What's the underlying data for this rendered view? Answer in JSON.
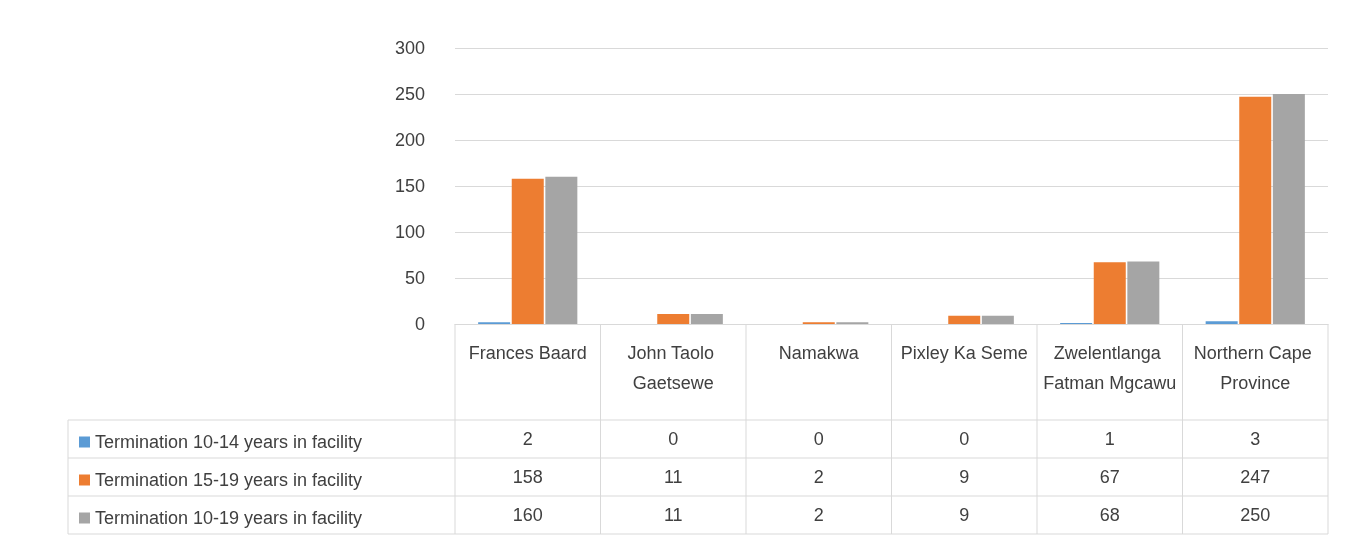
{
  "chart_data": {
    "type": "bar",
    "categories": [
      "Frances Baard",
      "John Taolo Gaetsewe",
      "Namakwa",
      "Pixley Ka Seme",
      "Zwelentlanga Fatman Mgcawu",
      "Northern Cape Province"
    ],
    "series": [
      {
        "name": "Termination 10-14 years in facility",
        "color": "#5b9bd5",
        "values": [
          2,
          0,
          0,
          0,
          1,
          3
        ]
      },
      {
        "name": "Termination 15-19 years in facility",
        "color": "#ed7d31",
        "values": [
          158,
          11,
          2,
          9,
          67,
          247
        ]
      },
      {
        "name": "Termination 10-19 years in facility",
        "color": "#a5a5a5",
        "values": [
          160,
          11,
          2,
          9,
          68,
          250
        ]
      }
    ],
    "ylim": [
      0,
      300
    ],
    "yticks": [
      0,
      50,
      100,
      150,
      200,
      250,
      300
    ],
    "grid": "y",
    "legend": "bottom left",
    "data_labels": true
  }
}
